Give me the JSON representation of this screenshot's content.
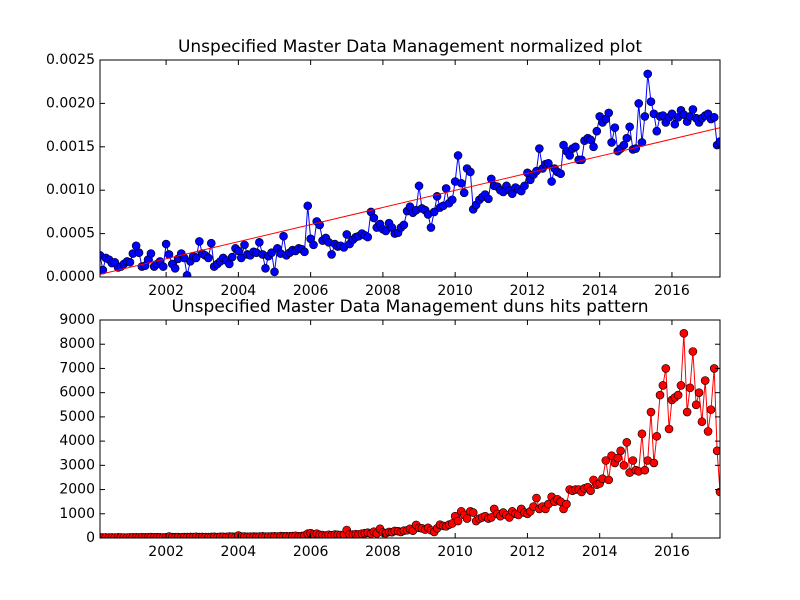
{
  "chart_data": [
    {
      "type": "line",
      "title": "Unspecified Master Data Management normalized plot",
      "x": [
        2000.17,
        2000.25,
        2000.33,
        2000.42,
        2000.5,
        2000.58,
        2000.67,
        2000.75,
        2000.83,
        2000.92,
        2001,
        2001.08,
        2001.17,
        2001.25,
        2001.33,
        2001.42,
        2001.5,
        2001.58,
        2001.67,
        2001.75,
        2001.83,
        2001.92,
        2002,
        2002.08,
        2002.17,
        2002.25,
        2002.33,
        2002.42,
        2002.5,
        2002.58,
        2002.67,
        2002.75,
        2002.83,
        2002.92,
        2003,
        2003.08,
        2003.17,
        2003.25,
        2003.33,
        2003.42,
        2003.5,
        2003.58,
        2003.67,
        2003.75,
        2003.83,
        2003.92,
        2004,
        2004.08,
        2004.17,
        2004.25,
        2004.33,
        2004.42,
        2004.5,
        2004.58,
        2004.67,
        2004.75,
        2004.83,
        2004.92,
        2005,
        2005.08,
        2005.17,
        2005.25,
        2005.33,
        2005.42,
        2005.5,
        2005.58,
        2005.67,
        2005.75,
        2005.83,
        2005.92,
        2006,
        2006.08,
        2006.17,
        2006.25,
        2006.33,
        2006.42,
        2006.5,
        2006.58,
        2006.67,
        2006.75,
        2006.83,
        2006.92,
        2007,
        2007.08,
        2007.17,
        2007.25,
        2007.33,
        2007.42,
        2007.5,
        2007.58,
        2007.67,
        2007.75,
        2007.83,
        2007.92,
        2008,
        2008.08,
        2008.17,
        2008.25,
        2008.33,
        2008.42,
        2008.5,
        2008.58,
        2008.67,
        2008.75,
        2008.83,
        2008.92,
        2009,
        2009.08,
        2009.17,
        2009.25,
        2009.33,
        2009.42,
        2009.5,
        2009.58,
        2009.67,
        2009.75,
        2009.83,
        2009.92,
        2010,
        2010.08,
        2010.17,
        2010.25,
        2010.33,
        2010.42,
        2010.5,
        2010.58,
        2010.67,
        2010.75,
        2010.83,
        2010.92,
        2011,
        2011.08,
        2011.17,
        2011.25,
        2011.33,
        2011.42,
        2011.5,
        2011.58,
        2011.67,
        2011.75,
        2011.83,
        2011.92,
        2012,
        2012.08,
        2012.17,
        2012.25,
        2012.33,
        2012.42,
        2012.5,
        2012.58,
        2012.67,
        2012.75,
        2012.83,
        2012.92,
        2013,
        2013.08,
        2013.17,
        2013.25,
        2013.33,
        2013.42,
        2013.5,
        2013.58,
        2013.67,
        2013.75,
        2013.83,
        2013.92,
        2014,
        2014.08,
        2014.17,
        2014.25,
        2014.33,
        2014.42,
        2014.5,
        2014.58,
        2014.67,
        2014.75,
        2014.83,
        2014.92,
        2015,
        2015.08,
        2015.17,
        2015.25,
        2015.33,
        2015.42,
        2015.5,
        2015.58,
        2015.67,
        2015.75,
        2015.83,
        2015.92,
        2016,
        2016.08,
        2016.17,
        2016.25,
        2016.33,
        2016.42,
        2016.5,
        2016.58,
        2016.67,
        2016.75,
        2016.83,
        2016.92,
        2017,
        2017.08,
        2017.17,
        2017.25,
        2017.33
      ],
      "series": [
        {
          "color": "#0000ff",
          "marker": true,
          "values": [
            0.00025,
            8e-05,
            0.00022,
            0.0002,
            0.00016,
            0.00017,
            0.00011,
            0.00012,
            0.00015,
            0.00018,
            0.00017,
            0.00027,
            0.00036,
            0.00028,
            0.00012,
            0.00013,
            0.0002,
            0.00027,
            0.00012,
            0.00015,
            0.00018,
            0.00012,
            0.00038,
            0.00026,
            0.00015,
            0.0001,
            0.00021,
            0.00027,
            0.00022,
            2e-05,
            0.00018,
            0.00024,
            0.00022,
            0.00041,
            0.00027,
            0.00025,
            0.00022,
            0.00039,
            0.00012,
            0.00015,
            0.00018,
            0.00022,
            0.00019,
            0.00015,
            0.00023,
            0.00033,
            0.0003,
            0.00022,
            0.00037,
            0.00026,
            0.00025,
            0.00029,
            0.00028,
            0.0004,
            0.00026,
            0.0001,
            0.00024,
            0.00028,
            6e-05,
            0.00033,
            0.00027,
            0.00047,
            0.00025,
            0.00028,
            0.00031,
            0.0003,
            0.00033,
            0.00032,
            0.00029,
            0.00082,
            0.00044,
            0.00037,
            0.00064,
            0.0006,
            0.00042,
            0.00045,
            0.0004,
            0.00026,
            0.00038,
            0.00035,
            0.00036,
            0.00034,
            0.00049,
            0.00038,
            0.00043,
            0.00046,
            0.00047,
            0.0005,
            0.00048,
            0.00046,
            0.00075,
            0.00068,
            0.00057,
            0.00061,
            0.00055,
            0.00053,
            0.00062,
            0.00057,
            0.0005,
            0.00051,
            0.00057,
            0.0006,
            0.00076,
            0.00081,
            0.00074,
            0.00077,
            0.00105,
            0.00079,
            0.00077,
            0.00072,
            0.00057,
            0.00075,
            0.00093,
            0.0008,
            0.00082,
            0.00102,
            0.00085,
            0.00089,
            0.0011,
            0.0014,
            0.00108,
            0.00097,
            0.00125,
            0.00121,
            0.00078,
            0.00083,
            0.00089,
            0.00092,
            0.00095,
            0.0009,
            0.00113,
            0.00105,
            0.00104,
            0.001,
            0.00098,
            0.00105,
            0.001,
            0.00096,
            0.00103,
            0.00101,
            0.00099,
            0.00105,
            0.0012,
            0.00112,
            0.00118,
            0.00122,
            0.00148,
            0.00125,
            0.0013,
            0.00131,
            0.0011,
            0.00125,
            0.00121,
            0.00119,
            0.00152,
            0.00145,
            0.0014,
            0.00148,
            0.0015,
            0.00135,
            0.00135,
            0.00157,
            0.0016,
            0.00158,
            0.0015,
            0.00168,
            0.00185,
            0.00178,
            0.00182,
            0.00189,
            0.00155,
            0.00172,
            0.00145,
            0.00148,
            0.00152,
            0.0016,
            0.00173,
            0.00147,
            0.00148,
            0.002,
            0.00155,
            0.00185,
            0.00234,
            0.00202,
            0.00188,
            0.00168,
            0.00185,
            0.00186,
            0.00178,
            0.00184,
            0.00188,
            0.00176,
            0.00184,
            0.00192,
            0.00187,
            0.00179,
            0.00185,
            0.00193,
            0.00183,
            0.00178,
            0.00183,
            0.00186,
            0.00188,
            0.00182,
            0.00184,
            0.00152,
            0.00156
          ]
        },
        {
          "color": "#ff0000",
          "marker": false,
          "x": [
            2000.17,
            2017.33
          ],
          "values": [
            3e-05,
            0.00172
          ]
        }
      ],
      "xlim": [
        2000.17,
        2017.33
      ],
      "xticks": [
        2002,
        2004,
        2006,
        2008,
        2010,
        2012,
        2014,
        2016
      ],
      "ylim": [
        0,
        0.0025
      ],
      "yticks": [
        {
          "value": 0,
          "label": "0.0000"
        },
        {
          "value": 0.0005,
          "label": "0.0005"
        },
        {
          "value": 0.001,
          "label": "0.0010"
        },
        {
          "value": 0.0015,
          "label": "0.0015"
        },
        {
          "value": 0.002,
          "label": "0.0020"
        },
        {
          "value": 0.0025,
          "label": "0.0025"
        }
      ]
    },
    {
      "type": "line",
      "title": "Unspecified Master Data Management duns hits pattern",
      "x": [
        2000.17,
        2000.25,
        2000.33,
        2000.42,
        2000.5,
        2000.58,
        2000.67,
        2000.75,
        2000.83,
        2000.92,
        2001,
        2001.08,
        2001.17,
        2001.25,
        2001.33,
        2001.42,
        2001.5,
        2001.58,
        2001.67,
        2001.75,
        2001.83,
        2001.92,
        2002,
        2002.08,
        2002.17,
        2002.25,
        2002.33,
        2002.42,
        2002.5,
        2002.58,
        2002.67,
        2002.75,
        2002.83,
        2002.92,
        2003,
        2003.08,
        2003.17,
        2003.25,
        2003.33,
        2003.42,
        2003.5,
        2003.58,
        2003.67,
        2003.75,
        2003.83,
        2003.92,
        2004,
        2004.08,
        2004.17,
        2004.25,
        2004.33,
        2004.42,
        2004.5,
        2004.58,
        2004.67,
        2004.75,
        2004.83,
        2004.92,
        2005,
        2005.08,
        2005.17,
        2005.25,
        2005.33,
        2005.42,
        2005.5,
        2005.58,
        2005.67,
        2005.75,
        2005.83,
        2005.92,
        2006,
        2006.08,
        2006.17,
        2006.25,
        2006.33,
        2006.42,
        2006.5,
        2006.58,
        2006.67,
        2006.75,
        2006.83,
        2006.92,
        2007,
        2007.08,
        2007.17,
        2007.25,
        2007.33,
        2007.42,
        2007.5,
        2007.58,
        2007.67,
        2007.75,
        2007.83,
        2007.92,
        2008,
        2008.08,
        2008.17,
        2008.25,
        2008.33,
        2008.42,
        2008.5,
        2008.58,
        2008.67,
        2008.75,
        2008.83,
        2008.92,
        2009,
        2009.08,
        2009.17,
        2009.25,
        2009.33,
        2009.42,
        2009.5,
        2009.58,
        2009.67,
        2009.75,
        2009.83,
        2009.92,
        2010,
        2010.08,
        2010.17,
        2010.25,
        2010.33,
        2010.42,
        2010.5,
        2010.58,
        2010.67,
        2010.75,
        2010.83,
        2010.92,
        2011,
        2011.08,
        2011.17,
        2011.25,
        2011.33,
        2011.42,
        2011.5,
        2011.58,
        2011.67,
        2011.75,
        2011.83,
        2011.92,
        2012,
        2012.08,
        2012.17,
        2012.25,
        2012.33,
        2012.42,
        2012.5,
        2012.58,
        2012.67,
        2012.75,
        2012.83,
        2012.92,
        2013,
        2013.08,
        2013.17,
        2013.25,
        2013.33,
        2013.42,
        2013.5,
        2013.58,
        2013.67,
        2013.75,
        2013.83,
        2013.92,
        2014,
        2014.08,
        2014.17,
        2014.25,
        2014.33,
        2014.42,
        2014.5,
        2014.58,
        2014.67,
        2014.75,
        2014.83,
        2014.92,
        2015,
        2015.08,
        2015.17,
        2015.25,
        2015.33,
        2015.42,
        2015.5,
        2015.58,
        2015.67,
        2015.75,
        2015.83,
        2015.92,
        2016,
        2016.08,
        2016.17,
        2016.25,
        2016.33,
        2016.42,
        2016.5,
        2016.58,
        2016.67,
        2016.75,
        2016.83,
        2016.92,
        2017,
        2017.08,
        2017.17,
        2017.25,
        2017.33
      ],
      "series": [
        {
          "color": "#ff0000",
          "marker": true,
          "values": [
            30,
            20,
            25,
            20,
            25,
            20,
            30,
            25,
            20,
            20,
            25,
            30,
            30,
            25,
            35,
            30,
            30,
            40,
            30,
            35,
            30,
            25,
            30,
            60,
            40,
            35,
            40,
            30,
            40,
            40,
            45,
            40,
            50,
            40,
            45,
            40,
            40,
            45,
            50,
            40,
            50,
            50,
            45,
            60,
            55,
            50,
            100,
            60,
            60,
            50,
            55,
            60,
            50,
            60,
            70,
            55,
            60,
            65,
            70,
            60,
            80,
            70,
            75,
            70,
            80,
            90,
            70,
            80,
            100,
            180,
            200,
            150,
            180,
            130,
            120,
            100,
            130,
            110,
            140,
            130,
            120,
            140,
            330,
            150,
            140,
            160,
            150,
            180,
            200,
            220,
            180,
            260,
            190,
            380,
            230,
            200,
            250,
            240,
            290,
            280,
            250,
            300,
            320,
            380,
            300,
            540,
            420,
            400,
            350,
            420,
            320,
            250,
            400,
            550,
            500,
            480,
            550,
            600,
            900,
            700,
            1100,
            950,
            800,
            1100,
            1050,
            700,
            800,
            850,
            900,
            800,
            850,
            1200,
            1000,
            900,
            1050,
            950,
            850,
            1100,
            1000,
            950,
            1200,
            1050,
            1000,
            1100,
            1300,
            1650,
            1200,
            1300,
            1200,
            1400,
            1700,
            1500,
            1600,
            1500,
            1200,
            1400,
            2000,
            1950,
            2000,
            2000,
            1900,
            2050,
            2100,
            1950,
            2400,
            2200,
            2250,
            2450,
            3200,
            2400,
            3400,
            3100,
            3300,
            3600,
            3000,
            3950,
            2700,
            3200,
            2800,
            2750,
            4300,
            2800,
            3200,
            5200,
            3100,
            4200,
            5900,
            6300,
            7000,
            4500,
            5700,
            5800,
            5900,
            6300,
            8450,
            5200,
            6200,
            7700,
            5500,
            6000,
            4800,
            6500,
            4400,
            5300,
            7000,
            3600,
            1900
          ]
        }
      ],
      "xlim": [
        2000.17,
        2017.33
      ],
      "xticks": [
        2002,
        2004,
        2006,
        2008,
        2010,
        2012,
        2014,
        2016
      ],
      "ylim": [
        0,
        9000
      ],
      "yticks": [
        0,
        1000,
        2000,
        3000,
        4000,
        5000,
        6000,
        7000,
        8000,
        9000
      ]
    }
  ]
}
